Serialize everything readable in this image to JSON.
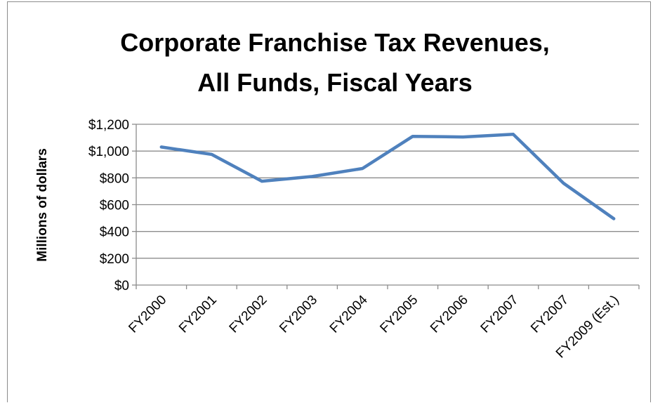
{
  "chart_data": {
    "type": "line",
    "title": [
      "Corporate Franchise Tax Revenues,",
      "All Funds, Fiscal Years"
    ],
    "xlabel": "",
    "ylabel": "Millions of dollars",
    "categories": [
      "FY2000",
      "FY2001",
      "FY2002",
      "FY2003",
      "FY2004",
      "FY2005",
      "FY2006",
      "FY2007",
      "FY2007",
      "FY2009 (Est.)"
    ],
    "series": [
      {
        "values": [
          1030,
          975,
          775,
          810,
          870,
          1110,
          1105,
          1125,
          760,
          495
        ],
        "color": "#4f81bd"
      }
    ],
    "ylim": [
      0,
      1200
    ],
    "yticks": [
      0,
      200,
      400,
      600,
      800,
      1000,
      1200
    ],
    "ytick_labels": [
      "$0",
      "$200",
      "$400",
      "$600",
      "$800",
      "$1,000",
      "$1,200"
    ],
    "grid": true,
    "legend": "none"
  }
}
